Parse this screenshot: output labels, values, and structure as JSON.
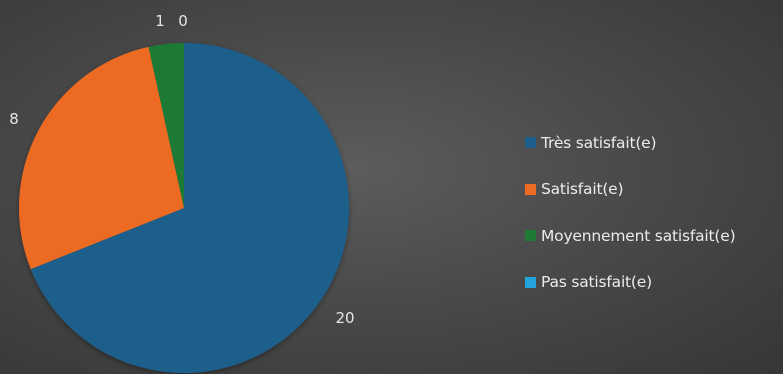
{
  "chart_data": {
    "type": "pie",
    "title": "",
    "legend_position": "right",
    "slices": [
      {
        "name": "Très satisfait(e)",
        "value": 20,
        "color": "#1f5f8b"
      },
      {
        "name": "Satisfait(e)",
        "value": 8,
        "color": "#ec6a23"
      },
      {
        "name": "Moyennement satisfait(e)",
        "value": 1,
        "color": "#1f7a35"
      },
      {
        "name": "Pas satisfait(e)",
        "value": 0,
        "color": "#23a3dc"
      }
    ]
  }
}
